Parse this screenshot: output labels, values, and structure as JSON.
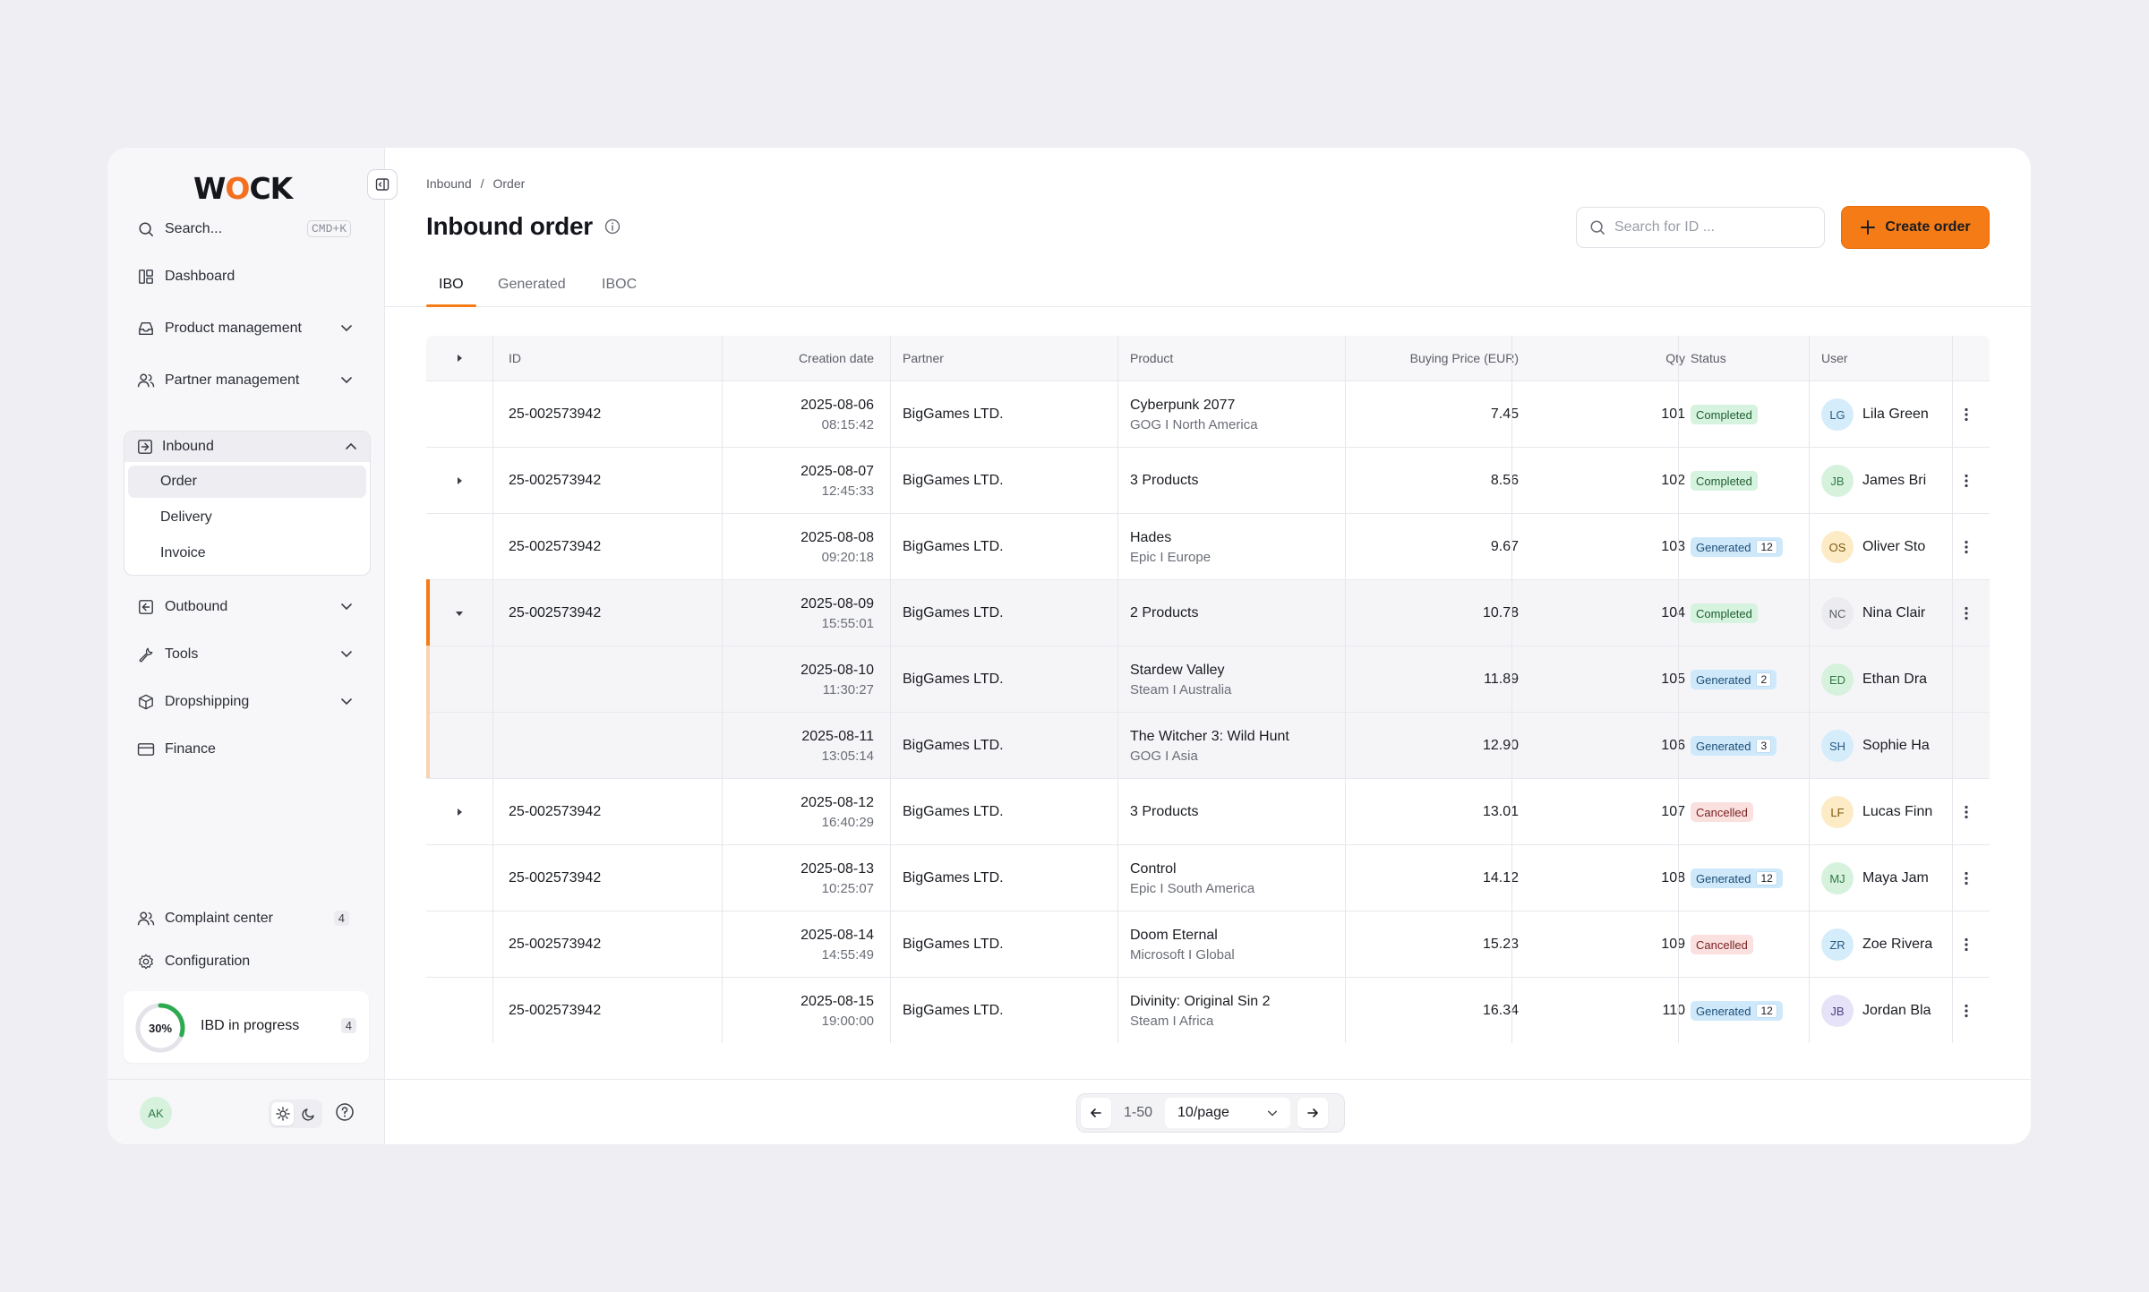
{
  "brand": {
    "logo_pre": "W",
    "logo_o": "O",
    "logo_post": "CK",
    "accent": "#F47B15"
  },
  "sidebar": {
    "search_label": "Search...",
    "search_shortcut": "CMD+K",
    "items": [
      {
        "label": "Dashboard",
        "icon": "dashboard-icon"
      },
      {
        "label": "Product management",
        "icon": "box-icon"
      },
      {
        "label": "Partner management",
        "icon": "users-icon"
      },
      {
        "label": "Inbound",
        "icon": "inbound-icon"
      },
      {
        "label": "Outbound",
        "icon": "outbound-icon"
      },
      {
        "label": "Tools",
        "icon": "wrench-icon"
      },
      {
        "label": "Dropshipping",
        "icon": "cube-icon"
      },
      {
        "label": "Finance",
        "icon": "card-icon"
      }
    ],
    "inbound_sub": [
      "Order",
      "Delivery",
      "Invoice"
    ],
    "complaint_center": {
      "label": "Complaint center",
      "count": "4"
    },
    "configuration": {
      "label": "Configuration"
    },
    "ibd": {
      "percent_label": "30%",
      "percent": 0.3,
      "label": "IBD in progress",
      "count": "4"
    },
    "user_initials": "AK"
  },
  "header": {
    "breadcrumb": [
      "Inbound",
      "/",
      "Order"
    ],
    "title": "Inbound order",
    "search_placeholder": "Search for ID ...",
    "create_label": "Create order"
  },
  "tabs": [
    "IBO",
    "Generated",
    "IBOC"
  ],
  "table": {
    "columns": [
      "ID",
      "Creation date",
      "Partner",
      "Product",
      "Buying Price (EUR)",
      "Qty",
      "Status",
      "User"
    ],
    "rows": [
      {
        "id": "25-002573942",
        "date": "2025-08-06",
        "time": "08:15:42",
        "partner": "BigGames LTD.",
        "product": "Cyberpunk 2077",
        "product_sub": "GOG I North America",
        "price": "7.45",
        "qty": "101",
        "status": "Completed",
        "status_count": "",
        "user_initials": "LG",
        "user_name": "Lila Green",
        "avatar_bg": "#D5ECFB",
        "avatar_fg": "#2A5C82",
        "expander": "none",
        "kind": "normal"
      },
      {
        "id": "25-002573942",
        "date": "2025-08-07",
        "time": "12:45:33",
        "partner": "BigGames LTD.",
        "product": "3 Products",
        "product_sub": "",
        "price": "8.56",
        "qty": "102",
        "status": "Completed",
        "status_count": "",
        "user_initials": "JB",
        "user_name": "James Bri",
        "avatar_bg": "#D6F2DD",
        "avatar_fg": "#2F7A45",
        "expander": "right",
        "kind": "normal"
      },
      {
        "id": "25-002573942",
        "date": "2025-08-08",
        "time": "09:20:18",
        "partner": "BigGames LTD.",
        "product": "Hades",
        "product_sub": "Epic I Europe",
        "price": "9.67",
        "qty": "103",
        "status": "Generated",
        "status_count": "12",
        "user_initials": "OS",
        "user_name": "Oliver Sto",
        "avatar_bg": "#FCEBC5",
        "avatar_fg": "#7A5A12",
        "expander": "none",
        "kind": "normal"
      },
      {
        "id": "25-002573942",
        "date": "2025-08-09",
        "time": "15:55:01",
        "partner": "BigGames LTD.",
        "product": "2 Products",
        "product_sub": "",
        "price": "10.78",
        "qty": "104",
        "status": "Completed",
        "status_count": "",
        "user_initials": "NC",
        "user_name": "Nina Clair",
        "avatar_bg": "#ECECF0",
        "avatar_fg": "#5A5D66",
        "expander": "down",
        "kind": "expanded"
      },
      {
        "id": "",
        "date": "2025-08-10",
        "time": "11:30:27",
        "partner": "BigGames LTD.",
        "product": "Stardew Valley",
        "product_sub": "Steam I Australia",
        "price": "11.89",
        "qty": "105",
        "status": "Generated",
        "status_count": "2",
        "user_initials": "ED",
        "user_name": "Ethan Dra",
        "avatar_bg": "#D6F2DD",
        "avatar_fg": "#2F7A45",
        "expander": "none",
        "kind": "sub"
      },
      {
        "id": "",
        "date": "2025-08-11",
        "time": "13:05:14",
        "partner": "BigGames LTD.",
        "product": "The Witcher 3: Wild Hunt",
        "product_sub": "GOG I Asia",
        "price": "12.90",
        "qty": "106",
        "status": "Generated",
        "status_count": "3",
        "user_initials": "SH",
        "user_name": "Sophie Ha",
        "avatar_bg": "#D5ECFB",
        "avatar_fg": "#2A5C82",
        "expander": "none",
        "kind": "sub"
      },
      {
        "id": "25-002573942",
        "date": "2025-08-12",
        "time": "16:40:29",
        "partner": "BigGames LTD.",
        "product": "3 Products",
        "product_sub": "",
        "price": "13.01",
        "qty": "107",
        "status": "Cancelled",
        "status_count": "",
        "user_initials": "LF",
        "user_name": "Lucas Finn",
        "avatar_bg": "#FCEBC5",
        "avatar_fg": "#7A5A12",
        "expander": "right",
        "kind": "normal"
      },
      {
        "id": "25-002573942",
        "date": "2025-08-13",
        "time": "10:25:07",
        "partner": "BigGames LTD.",
        "product": "Control",
        "product_sub": "Epic I South America",
        "price": "14.12",
        "qty": "108",
        "status": "Generated",
        "status_count": "12",
        "user_initials": "MJ",
        "user_name": "Maya Jam",
        "avatar_bg": "#D6F2DD",
        "avatar_fg": "#2F7A45",
        "expander": "none",
        "kind": "normal"
      },
      {
        "id": "25-002573942",
        "date": "2025-08-14",
        "time": "14:55:49",
        "partner": "BigGames LTD.",
        "product": "Doom Eternal",
        "product_sub": "Microsoft I Global",
        "price": "15.23",
        "qty": "109",
        "status": "Cancelled",
        "status_count": "",
        "user_initials": "ZR",
        "user_name": "Zoe Rivera",
        "avatar_bg": "#D5ECFB",
        "avatar_fg": "#2A5C82",
        "expander": "none",
        "kind": "normal"
      },
      {
        "id": "25-002573942",
        "date": "2025-08-15",
        "time": "19:00:00",
        "partner": "BigGames LTD.",
        "product": "Divinity: Original Sin 2",
        "product_sub": "Steam I Africa",
        "price": "16.34",
        "qty": "110",
        "status": "Generated",
        "status_count": "12",
        "user_initials": "JB",
        "user_name": "Jordan Bla",
        "avatar_bg": "#E6E2F7",
        "avatar_fg": "#4A3E86",
        "expander": "none",
        "kind": "normal"
      }
    ]
  },
  "pagination": {
    "range": "1-50",
    "page_size": "10/page"
  }
}
